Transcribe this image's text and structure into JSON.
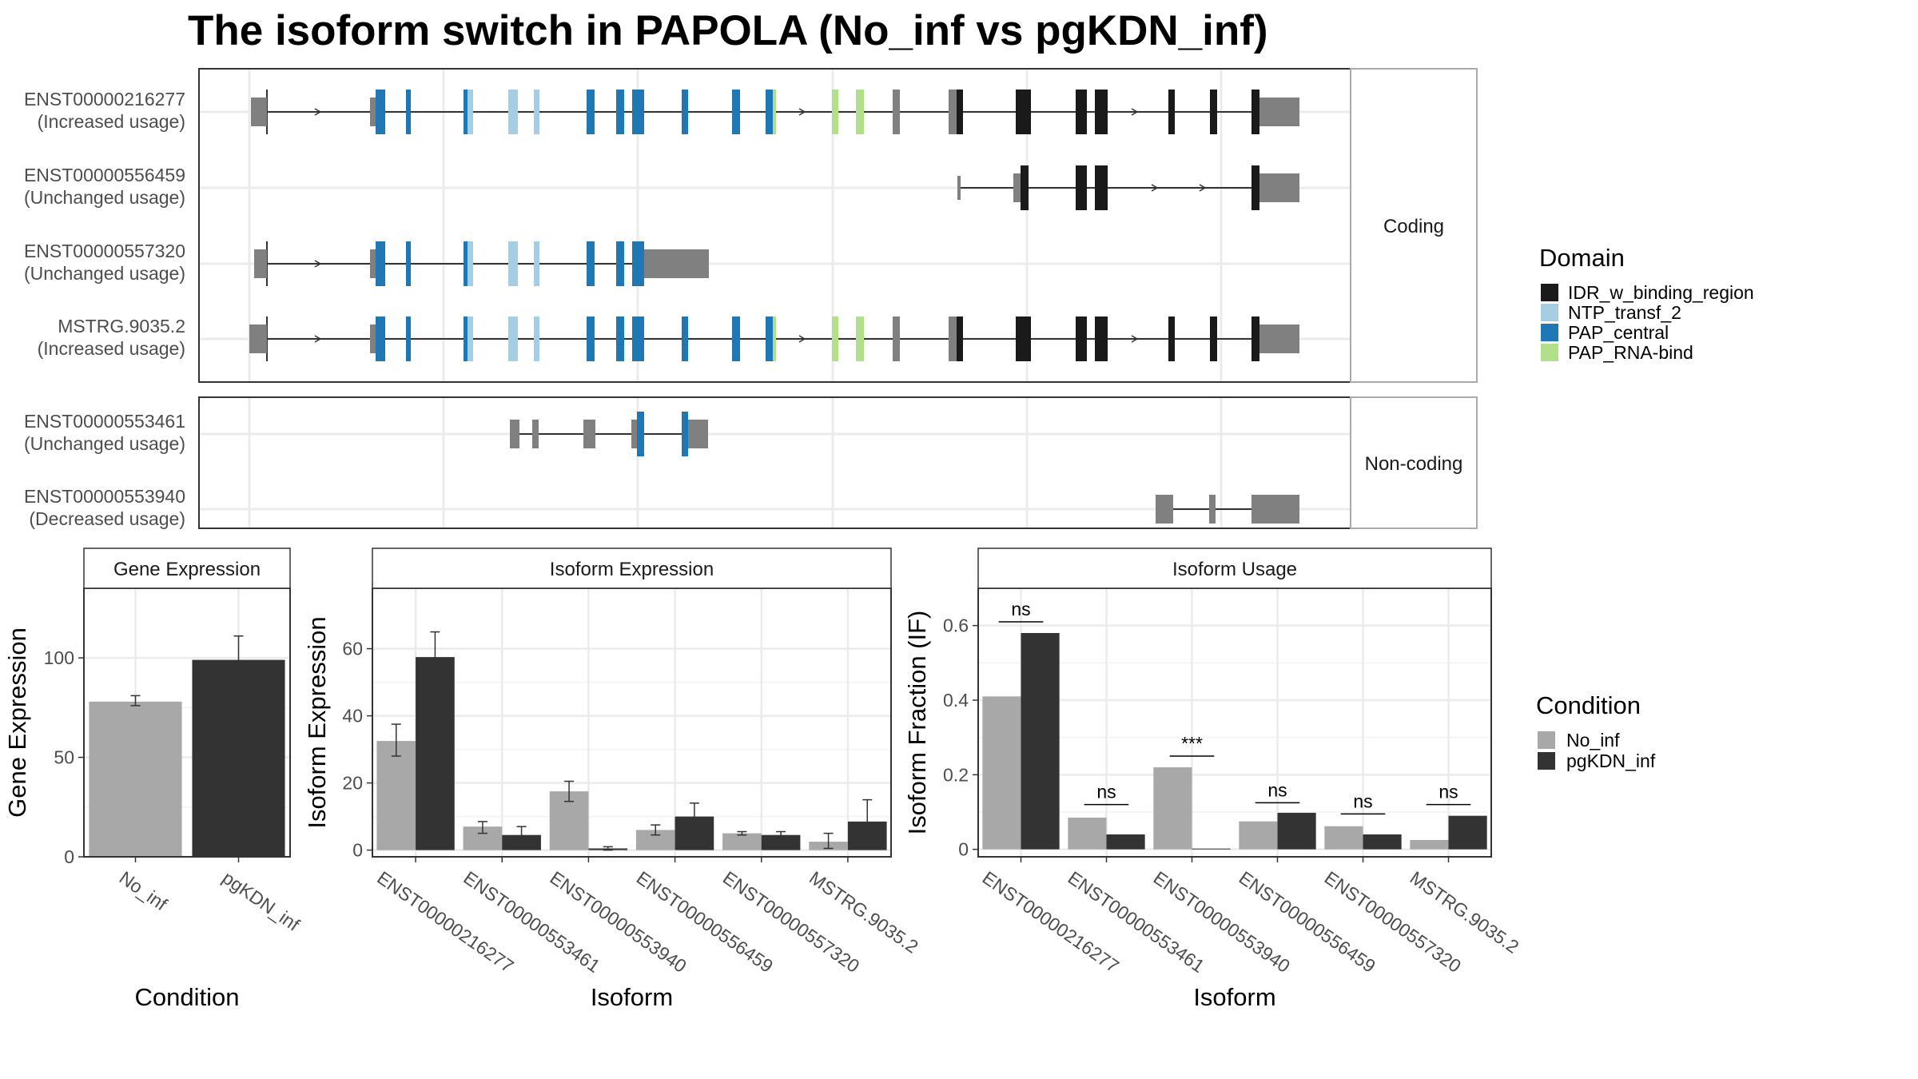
{
  "title": "The isoform switch in PAPOLA (No_inf vs pgKDN_inf)",
  "colors": {
    "No_inf": "#a8a8a8",
    "pgKDN_inf": "#333333",
    "utr": "#808080",
    "grid": "#ebebeb",
    "panel_border": "#333333",
    "strip_bg": "#ffffff",
    "IDR_w_binding_region": "#1a1a1a",
    "NTP_transf_2": "#a6cee3",
    "PAP_central": "#1f78b4",
    "PAP_RNA-bind": "#b2df8a"
  },
  "structure": {
    "facets": [
      {
        "label": "Coding",
        "rows": [
          {
            "id": "ENST00000216277",
            "usage": "(Increased usage)"
          },
          {
            "id": "ENST00000556459",
            "usage": "(Unchanged usage)"
          },
          {
            "id": "ENST00000557320",
            "usage": "(Unchanged usage)"
          },
          {
            "id": "MSTRG.9035.2",
            "usage": "(Increased usage)"
          }
        ]
      },
      {
        "label": "Non-coding",
        "rows": [
          {
            "id": "ENST00000553461",
            "usage": "(Unchanged usage)"
          },
          {
            "id": "ENST00000553940",
            "usage": "(Decreased usage)"
          }
        ]
      }
    ]
  },
  "legend_domain": {
    "title": "Domain",
    "items": [
      {
        "label": "IDR_w_binding_region",
        "color": "#1a1a1a"
      },
      {
        "label": "NTP_transf_2",
        "color": "#a6cee3"
      },
      {
        "label": "PAP_central",
        "color": "#1f78b4"
      },
      {
        "label": "PAP_RNA-bind",
        "color": "#b2df8a"
      }
    ]
  },
  "legend_condition": {
    "title": "Condition",
    "items": [
      {
        "label": "No_inf",
        "color": "#a8a8a8"
      },
      {
        "label": "pgKDN_inf",
        "color": "#333333"
      }
    ]
  },
  "chart_data": [
    {
      "type": "bar",
      "title": "Gene Expression",
      "xlabel": "Condition",
      "ylabel": "Gene Expression",
      "ylim": [
        0,
        135
      ],
      "yticks": [
        0,
        50,
        100
      ],
      "categories": [
        "No_inf",
        "pgKDN_inf"
      ],
      "values": [
        78,
        99
      ],
      "errors": [
        [
          76,
          81
        ],
        [
          87,
          111
        ]
      ]
    },
    {
      "type": "bar",
      "title": "Isoform Expression",
      "xlabel": "Isoform",
      "ylabel": "Isoform Expression",
      "ylim": [
        -2,
        78
      ],
      "yticks": [
        0,
        20,
        40,
        60
      ],
      "categories": [
        "ENST00000216277",
        "ENST00000553461",
        "ENST00000553940",
        "ENST00000556459",
        "ENST00000557320",
        "MSTRG.9035.2"
      ],
      "series": [
        {
          "name": "No_inf",
          "values": [
            32.5,
            7,
            17.5,
            6,
            5,
            2.5
          ],
          "errors": [
            [
              28,
              37.5
            ],
            [
              5,
              8.5
            ],
            [
              14.5,
              20.5
            ],
            [
              4.5,
              7.5
            ],
            [
              4.5,
              5.5
            ],
            [
              0.5,
              5
            ]
          ]
        },
        {
          "name": "pgKDN_inf",
          "values": [
            57.5,
            4.5,
            0.5,
            10,
            4.5,
            8.5
          ],
          "errors": [
            [
              50,
              65
            ],
            [
              2,
              7
            ],
            [
              0,
              1
            ],
            [
              6.5,
              14
            ],
            [
              3,
              5.5
            ],
            [
              2.5,
              15
            ]
          ]
        }
      ]
    },
    {
      "type": "bar",
      "title": "Isoform Usage",
      "xlabel": "Isoform",
      "ylabel": "Isoform Fraction (IF)",
      "ylim": [
        -0.02,
        0.7
      ],
      "yticks": [
        0.0,
        0.2,
        0.4,
        0.6
      ],
      "categories": [
        "ENST00000216277",
        "ENST00000553461",
        "ENST00000553940",
        "ENST00000556459",
        "ENST00000557320",
        "MSTRG.9035.2"
      ],
      "series": [
        {
          "name": "No_inf",
          "values": [
            0.41,
            0.085,
            0.22,
            0.075,
            0.062,
            0.025
          ]
        },
        {
          "name": "pgKDN_inf",
          "values": [
            0.58,
            0.04,
            0.002,
            0.098,
            0.04,
            0.09
          ]
        }
      ],
      "significance": [
        "ns",
        "ns",
        "***",
        "ns",
        "ns",
        "ns"
      ],
      "sig_y": [
        0.61,
        0.12,
        0.25,
        0.125,
        0.095,
        0.12
      ]
    }
  ]
}
